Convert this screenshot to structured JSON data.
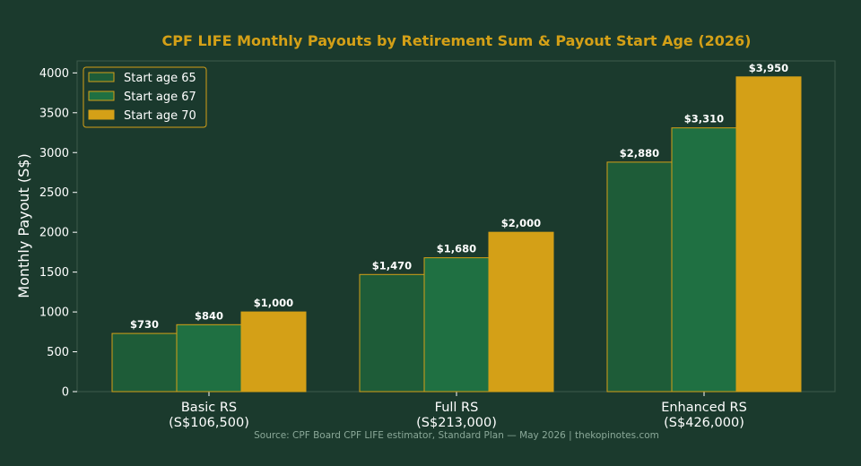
{
  "chart_data": {
    "type": "bar",
    "title": "CPF LIFE Monthly Payouts by Retirement Sum & Payout Start Age (2026)",
    "xlabel": "",
    "ylabel": "Monthly Payout (S$)",
    "ylim": [
      0,
      4150
    ],
    "yticks": [
      0,
      500,
      1000,
      1500,
      2000,
      2500,
      3000,
      3500,
      4000
    ],
    "categories": [
      [
        "Basic RS",
        "(S$106,500)"
      ],
      [
        "Full RS",
        "(S$213,000)"
      ],
      [
        "Enhanced RS",
        "(S$426,000)"
      ]
    ],
    "series": [
      {
        "name": "Start age 65",
        "color": "#1e5c38",
        "values": [
          730,
          1470,
          2880
        ],
        "labels": [
          "$730",
          "$1,470",
          "$2,880"
        ]
      },
      {
        "name": "Start age 67",
        "color": "#1f7042",
        "values": [
          840,
          1680,
          3310
        ],
        "labels": [
          "$840",
          "$1,680",
          "$3,310"
        ]
      },
      {
        "name": "Start age 70",
        "color": "#d4a017",
        "values": [
          1000,
          2000,
          3950
        ],
        "labels": [
          "$1,000",
          "$2,000",
          "$3,950"
        ]
      }
    ],
    "legend_position": "top-left",
    "grid": false,
    "bar_edge_color": "#d4a017",
    "source": "Source: CPF Board CPF LIFE estimator, Standard Plan — May 2026 | thekopinotes.com"
  },
  "colors": {
    "background": "#1b3a2d",
    "title": "#d4a017",
    "axes": "#3d5a4c",
    "source_text": "#8aa898"
  }
}
